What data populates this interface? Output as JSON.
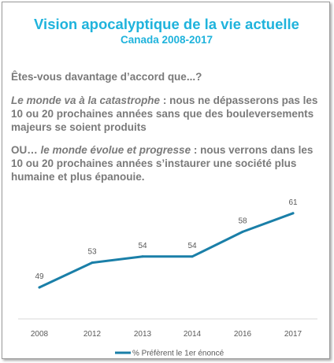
{
  "title": "Vision apocalyptique de la vie actuelle",
  "subtitle": "Canada 2008-2017",
  "question": "Êtes-vous davantage d’accord que...?",
  "statement1": {
    "emphasis": "Le monde va à la catastrophe",
    "rest": " : nous ne dépasserons pas les 10 ou 20 prochaines années sans que des bouleversements majeurs se soient produits"
  },
  "statement2": {
    "prefix": "OU… ",
    "emphasis": "le monde évolue et progresse",
    "rest": " : nous verrons dans les 10 ou 20 prochaines années s’instaurer une société plus humaine et plus épanouie."
  },
  "colors": {
    "accent": "#1fb3dc",
    "line": "#1a7fa8",
    "text": "#7a7a7a"
  },
  "chart_data": {
    "type": "line",
    "categories": [
      "2008",
      "2012",
      "2013",
      "2014",
      "2016",
      "2017"
    ],
    "series": [
      {
        "name": "% Préfèrent le 1er énoncé",
        "values": [
          49,
          53,
          54,
          54,
          58,
          61
        ]
      }
    ],
    "ylim": [
      45,
      65
    ],
    "grid": false,
    "legend": "bottom-center"
  }
}
